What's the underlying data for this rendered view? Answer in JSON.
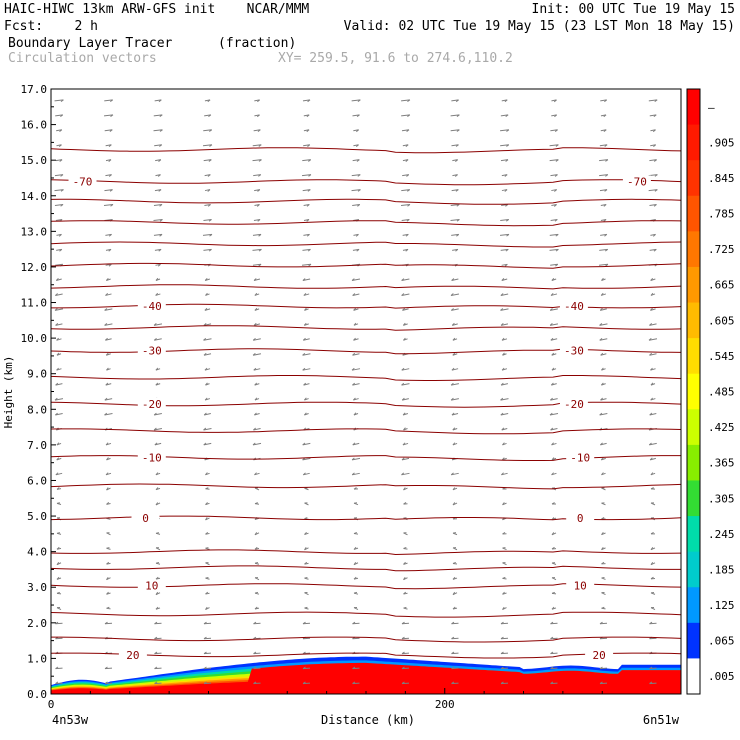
{
  "header": {
    "line1_left": "HAIC-HIWC 13km ARW-GFS init    NCAR/MMM",
    "line1_right": "Init: 00 UTC Tue 19 May 15",
    "line2_left": "Fcst:    2 h",
    "line2_right": "Valid: 02 UTC Tue 19 May 15 (23 LST Mon 18 May 15)",
    "line3_left": "Boundary Layer Tracer",
    "line3_mid": "(fraction)",
    "line4_left": "Circulation vectors",
    "line4_mid": "XY= 259.5, 91.6 to 274.6,110.2"
  },
  "chart_data": {
    "type": "heatmap",
    "ylabel": "Height (km)",
    "xlabel": "Distance (km)",
    "ylim": [
      0,
      17
    ],
    "xlim": [
      0,
      320
    ],
    "yticks": [
      "0.0",
      "1.0",
      "2.0",
      "3.0",
      "4.0",
      "5.0",
      "6.0",
      "7.0",
      "8.0",
      "9.0",
      "10.0",
      "11.0",
      "12.0",
      "13.0",
      "14.0",
      "15.0",
      "16.0",
      "17.0"
    ],
    "xticks": [
      {
        "value": 0,
        "label": "0"
      },
      {
        "value": 200,
        "label": "200"
      }
    ],
    "x_end_labels": {
      "left": "4n53w",
      "right": "6n51w"
    },
    "colorbar": {
      "labels": [
        "–",
        ".905",
        ".845",
        ".785",
        ".725",
        ".665",
        ".605",
        ".545",
        ".485",
        ".425",
        ".365",
        ".305",
        ".245",
        ".185",
        ".125",
        ".065",
        ".005"
      ],
      "colors": [
        "#ff0000",
        "#ff1a00",
        "#ff3300",
        "#ff5500",
        "#ff7700",
        "#ff9900",
        "#ffbb00",
        "#ffdd00",
        "#ffff00",
        "#ccff00",
        "#88ee00",
        "#33dd33",
        "#00ddaa",
        "#00cccc",
        "#0099ff",
        "#0033ff",
        "#ffffff"
      ]
    },
    "temperature_contours": [
      {
        "label": "-70",
        "height": 14.4,
        "label_x": [
          0.05,
          0.93
        ]
      },
      {
        "label": "-40",
        "height": 10.9,
        "label_x": [
          0.16,
          0.83
        ]
      },
      {
        "label": "-30",
        "height": 9.65,
        "label_x": [
          0.16,
          0.83
        ]
      },
      {
        "label": "-20",
        "height": 8.15,
        "label_x": [
          0.16,
          0.83
        ]
      },
      {
        "label": "-10",
        "height": 6.65,
        "label_x": [
          0.16,
          0.84
        ]
      },
      {
        "label": "0",
        "height": 4.95,
        "label_x": [
          0.15,
          0.84
        ]
      },
      {
        "label": "10",
        "height": 3.05,
        "label_x": [
          0.16,
          0.84
        ]
      },
      {
        "label": "20",
        "height": 1.1,
        "label_x": [
          0.13,
          0.87
        ]
      }
    ],
    "contour_color": "#8b0000",
    "vector_color": "#7f7f7f"
  }
}
